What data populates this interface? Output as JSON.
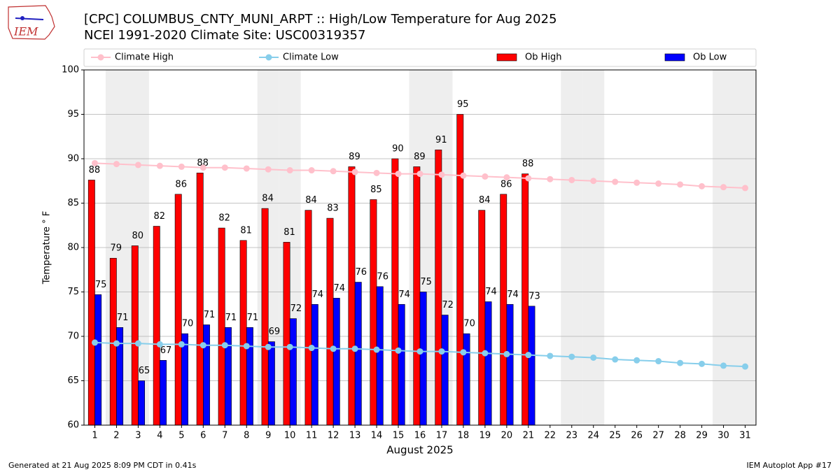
{
  "logo_text": "IEM",
  "footer_left": "Generated at 21 Aug 2025 8:09 PM CDT in 0.41s",
  "footer_right": "IEM Autoplot App #17",
  "chart_data": {
    "type": "bar",
    "title": "[CPC] COLUMBUS_CNTY_MUNI_ARPT :: High/Low Temperature for Aug 2025",
    "subtitle": "NCEI 1991-2020 Climate Site: USC00319357",
    "x_label": "August 2025",
    "y_label": "Temperature ° F",
    "categories": [
      1,
      2,
      3,
      4,
      5,
      6,
      7,
      8,
      9,
      10,
      11,
      12,
      13,
      14,
      15,
      16,
      17,
      18,
      19,
      20,
      21,
      22,
      23,
      24,
      25,
      26,
      27,
      28,
      29,
      30,
      31
    ],
    "shaded_days": [
      2,
      3,
      9,
      10,
      16,
      17,
      23,
      24,
      30,
      31
    ],
    "xlim": [
      0.5,
      31.5
    ],
    "ylim": [
      60,
      100
    ],
    "yticks": [
      60,
      65,
      70,
      75,
      80,
      85,
      90,
      95,
      100
    ],
    "grid": true,
    "series": [
      {
        "name": "Climate High",
        "type": "line",
        "color": "#ffc0cb",
        "values": [
          89.5,
          89.4,
          89.3,
          89.2,
          89.1,
          89.0,
          89.0,
          88.9,
          88.8,
          88.7,
          88.7,
          88.6,
          88.5,
          88.4,
          88.3,
          88.3,
          88.2,
          88.1,
          88.0,
          87.9,
          87.8,
          87.7,
          87.6,
          87.5,
          87.4,
          87.3,
          87.2,
          87.1,
          86.9,
          86.8,
          86.7
        ]
      },
      {
        "name": "Climate Low",
        "type": "line",
        "color": "#87ceeb",
        "values": [
          69.3,
          69.2,
          69.2,
          69.1,
          69.1,
          69.0,
          69.0,
          68.9,
          68.8,
          68.8,
          68.7,
          68.6,
          68.6,
          68.5,
          68.4,
          68.3,
          68.3,
          68.2,
          68.1,
          68.0,
          67.9,
          67.8,
          67.7,
          67.6,
          67.4,
          67.3,
          67.2,
          67.0,
          66.9,
          66.7,
          66.6
        ]
      },
      {
        "name": "Ob High",
        "type": "bar",
        "color": "#ff0000",
        "values": [
          87.6,
          78.8,
          80.2,
          82.4,
          86.0,
          88.4,
          82.2,
          80.8,
          84.4,
          80.6,
          84.2,
          83.3,
          89.1,
          85.4,
          90.0,
          89.1,
          91.0,
          95.0,
          84.2,
          86.0,
          88.3,
          null,
          null,
          null,
          null,
          null,
          null,
          null,
          null,
          null,
          null
        ],
        "value_labels": [
          "88",
          "79",
          "80",
          "82",
          "86",
          "88",
          "82",
          "81",
          "84",
          "81",
          "84",
          "83",
          "89",
          "85",
          "90",
          "89",
          "91",
          "95",
          "84",
          "86",
          "88",
          null,
          null,
          null,
          null,
          null,
          null,
          null,
          null,
          null,
          null
        ]
      },
      {
        "name": "Ob Low",
        "type": "bar",
        "color": "#0000ff",
        "values": [
          74.7,
          71.0,
          65.0,
          67.3,
          70.3,
          71.3,
          71.0,
          71.0,
          69.4,
          72.0,
          73.6,
          74.3,
          76.1,
          75.6,
          73.6,
          75.0,
          72.4,
          70.3,
          73.9,
          73.6,
          73.4,
          null,
          null,
          null,
          null,
          null,
          null,
          null,
          null,
          null,
          null
        ],
        "value_labels": [
          "75",
          "71",
          "65",
          "67",
          "70",
          "71",
          "71",
          "71",
          "69",
          "72",
          "74",
          "74",
          "76",
          "76",
          "74",
          "75",
          "72",
          "70",
          "74",
          "74",
          "73",
          null,
          null,
          null,
          null,
          null,
          null,
          null,
          null,
          null,
          null
        ]
      }
    ]
  }
}
